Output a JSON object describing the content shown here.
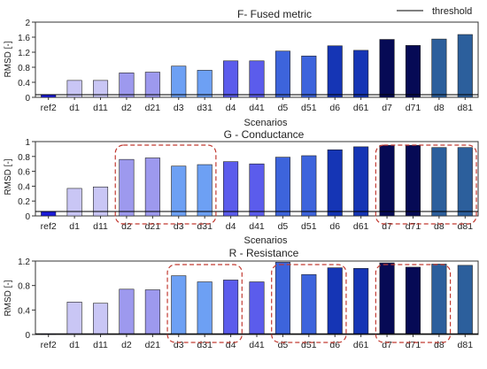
{
  "legend": {
    "label": "threshold"
  },
  "colors": {
    "ref2": "#1a1ad8",
    "d1": "#c9c6f5",
    "d11": "#c9c6f5",
    "d2": "#9d99ee",
    "d21": "#9d99ee",
    "d3": "#6da0f4",
    "d31": "#6da0f4",
    "d4": "#5b5cec",
    "d41": "#5b5cec",
    "d5": "#3d64dc",
    "d51": "#3d64dc",
    "d6": "#1535b5",
    "d61": "#1535b5",
    "d7": "#060a55",
    "d71": "#060a55",
    "d8": "#2c5f9c",
    "d81": "#2c5f9c",
    "threshold": "#000000",
    "highlight_box": "#c23b32"
  },
  "chart_data": [
    {
      "type": "bar",
      "title": "F- Fused metric",
      "xlabel": "Scenarios",
      "ylabel": "RMSD [-]",
      "categories": [
        "ref2",
        "d1",
        "d11",
        "d2",
        "d21",
        "d3",
        "d31",
        "d4",
        "d41",
        "d5",
        "d51",
        "d6",
        "d61",
        "d7",
        "d71",
        "d8",
        "d81"
      ],
      "values": [
        0.07,
        0.45,
        0.45,
        0.65,
        0.67,
        0.83,
        0.72,
        0.97,
        0.97,
        1.23,
        1.1,
        1.37,
        1.25,
        1.54,
        1.38,
        1.55,
        1.67
      ],
      "threshold": 0.07,
      "ylim": [
        0,
        2
      ],
      "yticks": [
        "0",
        "0.4",
        "0.8",
        "1.2",
        "1.6",
        "2"
      ],
      "highlight_groups": []
    },
    {
      "type": "bar",
      "title": "G - Conductance",
      "xlabel": "Scenarios",
      "ylabel": "RMSD [-]",
      "categories": [
        "ref2",
        "d1",
        "d11",
        "d2",
        "d21",
        "d3",
        "d31",
        "d4",
        "d41",
        "d5",
        "d51",
        "d6",
        "d61",
        "d7",
        "d71",
        "d8",
        "d81"
      ],
      "values": [
        0.06,
        0.37,
        0.39,
        0.76,
        0.78,
        0.67,
        0.69,
        0.73,
        0.7,
        0.79,
        0.81,
        0.89,
        0.93,
        0.95,
        0.95,
        0.92,
        0.92
      ],
      "threshold": 0.06,
      "ylim": [
        0,
        1
      ],
      "yticks": [
        "0",
        "0.2",
        "0.4",
        "0.6",
        "0.8",
        "1"
      ],
      "highlight_groups": [
        [
          "d2",
          "d31"
        ],
        [
          "d7",
          "d81"
        ]
      ]
    },
    {
      "type": "bar",
      "title": "R - Resistance",
      "xlabel": "",
      "ylabel": "RMSD [-]",
      "categories": [
        "ref2",
        "d1",
        "d11",
        "d2",
        "d21",
        "d3",
        "d31",
        "d4",
        "d41",
        "d5",
        "d51",
        "d6",
        "d61",
        "d7",
        "d71",
        "d8",
        "d81"
      ],
      "values": [
        0.01,
        0.53,
        0.51,
        0.74,
        0.73,
        0.96,
        0.86,
        0.89,
        0.86,
        1.18,
        0.98,
        1.09,
        1.08,
        1.17,
        1.1,
        1.15,
        1.13
      ],
      "threshold": 0.01,
      "ylim": [
        0,
        1.2
      ],
      "yticks": [
        "0",
        "0.4",
        "0.8",
        "1.2"
      ],
      "highlight_groups": [
        [
          "d3",
          "d4"
        ],
        [
          "d5",
          "d6"
        ],
        [
          "d7",
          "d8"
        ]
      ]
    }
  ]
}
